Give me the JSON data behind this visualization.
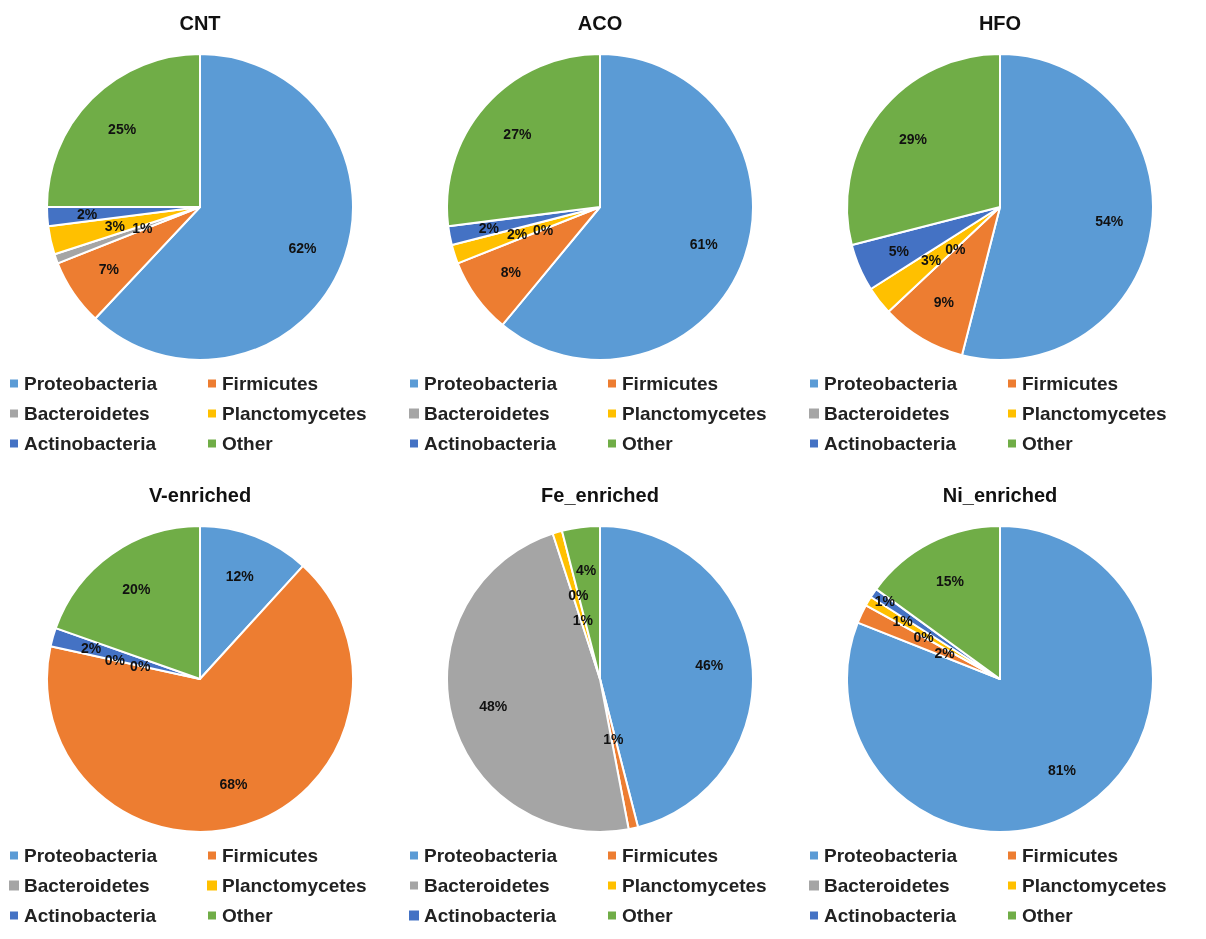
{
  "chart_data": [
    {
      "type": "pie",
      "title": "CNT",
      "categories": [
        "Proteobacteria",
        "Firmicutes",
        "Bacteroidetes",
        "Planctomycetes",
        "Actinobacteria",
        "Other"
      ],
      "values": [
        62,
        7,
        1,
        3,
        2,
        25
      ],
      "value_labels": [
        "62%",
        "7%",
        "1%",
        "3%",
        "2%",
        "25%"
      ],
      "colors": [
        "#5b9bd5",
        "#ed7d31",
        "#a5a5a5",
        "#ffc000",
        "#4472c4",
        "#70ad47"
      ],
      "legend": "bottom"
    },
    {
      "type": "pie",
      "title": "ACO",
      "categories": [
        "Proteobacteria",
        "Firmicutes",
        "Bacteroidetes",
        "Planctomycetes",
        "Actinobacteria",
        "Other"
      ],
      "values": [
        61,
        8,
        0,
        2,
        2,
        27
      ],
      "value_labels": [
        "61%",
        "8%",
        "0%",
        "2%",
        "2%",
        "27%"
      ],
      "colors": [
        "#5b9bd5",
        "#ed7d31",
        "#a5a5a5",
        "#ffc000",
        "#4472c4",
        "#70ad47"
      ],
      "legend": "bottom"
    },
    {
      "type": "pie",
      "title": "HFO",
      "categories": [
        "Proteobacteria",
        "Firmicutes",
        "Bacteroidetes",
        "Planctomycetes",
        "Actinobacteria",
        "Other"
      ],
      "values": [
        54,
        9,
        0,
        3,
        5,
        29
      ],
      "value_labels": [
        "54%",
        "9%",
        "0%",
        "3%",
        "5%",
        "29%"
      ],
      "colors": [
        "#5b9bd5",
        "#ed7d31",
        "#a5a5a5",
        "#ffc000",
        "#4472c4",
        "#70ad47"
      ],
      "legend": "bottom"
    },
    {
      "type": "pie",
      "title": "V-enriched",
      "categories": [
        "Proteobacteria",
        "Firmicutes",
        "Bacteroidetes",
        "Planctomycetes",
        "Actinobacteria",
        "Other"
      ],
      "values": [
        12,
        68,
        0,
        0,
        2,
        20
      ],
      "value_labels": [
        "12%",
        "68%",
        "0%",
        "0%",
        "2%",
        "20%"
      ],
      "colors": [
        "#5b9bd5",
        "#ed7d31",
        "#a5a5a5",
        "#ffc000",
        "#4472c4",
        "#70ad47"
      ],
      "legend": "bottom"
    },
    {
      "type": "pie",
      "title": "Fe_enriched",
      "categories": [
        "Proteobacteria",
        "Firmicutes",
        "Bacteroidetes",
        "Planctomycetes",
        "Actinobacteria",
        "Other"
      ],
      "values": [
        46,
        1,
        48,
        1,
        0,
        4
      ],
      "value_labels": [
        "46%",
        "1%",
        "48%",
        "1%",
        "0%",
        "4%"
      ],
      "colors": [
        "#5b9bd5",
        "#ed7d31",
        "#a5a5a5",
        "#ffc000",
        "#4472c4",
        "#70ad47"
      ],
      "legend": "bottom"
    },
    {
      "type": "pie",
      "title": "Ni_enriched",
      "categories": [
        "Proteobacteria",
        "Firmicutes",
        "Bacteroidetes",
        "Planctomycetes",
        "Actinobacteria",
        "Other"
      ],
      "values": [
        81,
        2,
        0,
        1,
        1,
        15
      ],
      "value_labels": [
        "81%",
        "2%",
        "0%",
        "1%",
        "1%",
        "15%"
      ],
      "colors": [
        "#5b9bd5",
        "#ed7d31",
        "#a5a5a5",
        "#ffc000",
        "#4472c4",
        "#70ad47"
      ],
      "legend": "bottom"
    }
  ]
}
